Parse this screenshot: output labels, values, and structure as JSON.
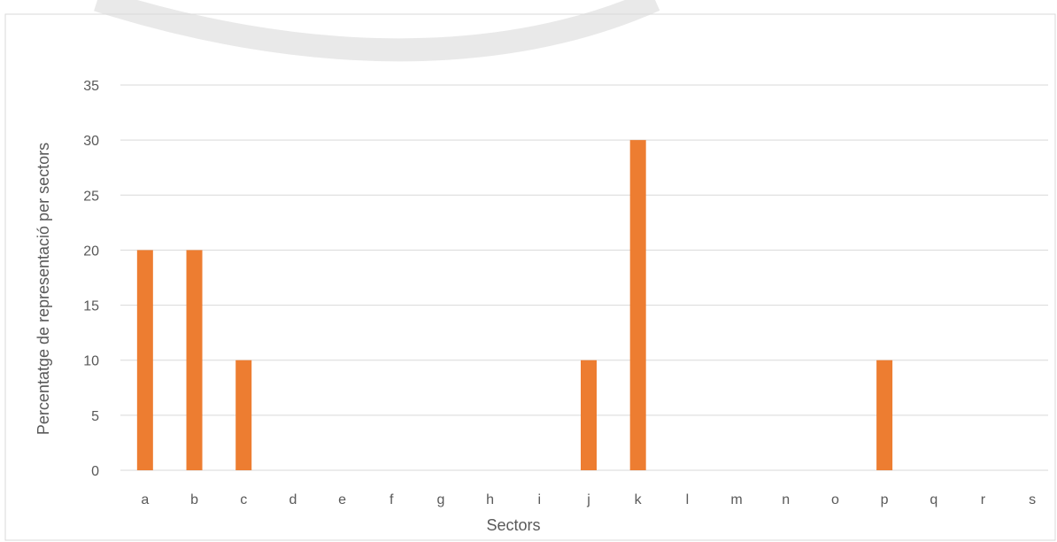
{
  "chart_data": {
    "type": "bar",
    "title": "",
    "xlabel": "Sectors",
    "ylabel": "Percentatge de representació per sectors",
    "categories": [
      "a",
      "b",
      "c",
      "d",
      "e",
      "f",
      "g",
      "h",
      "i",
      "j",
      "k",
      "l",
      "m",
      "n",
      "o",
      "p",
      "q",
      "r",
      "s"
    ],
    "values": [
      20,
      20,
      10,
      0,
      0,
      0,
      0,
      0,
      0,
      10,
      30,
      0,
      0,
      0,
      0,
      10,
      0,
      0,
      0
    ],
    "ylim": [
      0,
      35
    ],
    "yticks": [
      0,
      5,
      10,
      15,
      20,
      25,
      30,
      35
    ],
    "grid": true,
    "legend": "none",
    "colors": {
      "bar": "#ED7D31",
      "grid": "#D9D9D9",
      "text": "#595959",
      "frame": "#D9D9D9",
      "watermark": "#E7E7E7"
    }
  }
}
